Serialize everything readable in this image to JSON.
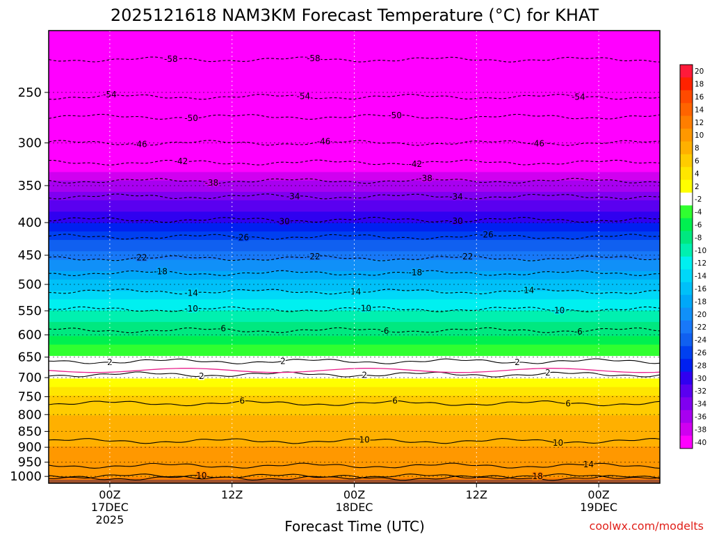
{
  "chart_data": {
    "type": "heatmap",
    "title": "2025121618 NAM3KM Forecast Temperature (°C) for KHAT",
    "xlabel": "Forecast Time (UTC)",
    "ylabel": "",
    "credit": "coolwx.com/modelts",
    "x_ticks": [
      {
        "hour": 6,
        "lines": [
          "00Z",
          "17DEC",
          "2025"
        ]
      },
      {
        "hour": 18,
        "lines": [
          "12Z"
        ]
      },
      {
        "hour": 30,
        "lines": [
          "00Z",
          "18DEC"
        ]
      },
      {
        "hour": 42,
        "lines": [
          "12Z"
        ]
      },
      {
        "hour": 54,
        "lines": [
          "00Z",
          "19DEC"
        ]
      }
    ],
    "xlim": [
      0,
      60
    ],
    "y_ticks": [
      1000,
      950,
      900,
      850,
      800,
      750,
      700,
      650,
      600,
      550,
      500,
      450,
      400,
      350,
      300,
      250
    ],
    "ylim": [
      1025,
      200
    ],
    "y_scale": "log-pressure",
    "colorbar": {
      "levels": [
        "20",
        "18",
        "16",
        "14",
        "12",
        "10",
        "8",
        "6",
        "4",
        "2",
        "-2",
        "-4",
        "-6",
        "-8",
        "-10",
        "-12",
        "-14",
        "-16",
        "-18",
        "-20",
        "-22",
        "-24",
        "-26",
        "-28",
        "-30",
        "-32",
        "-34",
        "-36",
        "-38",
        "-40"
      ],
      "colors": [
        "#ff1a3a",
        "#ff2200",
        "#ff4a00",
        "#ff6400",
        "#ff7e00",
        "#ff9800",
        "#ffb000",
        "#ffcc00",
        "#ffe600",
        "#ffff00",
        "#ffffff",
        "#30ff30",
        "#00f050",
        "#00e880",
        "#00f0b0",
        "#00f0f0",
        "#00d8f8",
        "#00c0f8",
        "#00a8f8",
        "#1090f8",
        "#1878f8",
        "#1060f0",
        "#0040f0",
        "#0020f0",
        "#3000f0",
        "#5a00f0",
        "#8000f0",
        "#a800f0",
        "#d000f0",
        "#ff00ff"
      ]
    },
    "temperature_profile": [
      {
        "pressure": 1000,
        "temp": 12
      },
      {
        "pressure": 950,
        "temp": 11
      },
      {
        "pressure": 900,
        "temp": 10
      },
      {
        "pressure": 850,
        "temp": 9
      },
      {
        "pressure": 800,
        "temp": 8
      },
      {
        "pressure": 750,
        "temp": 6
      },
      {
        "pressure": 700,
        "temp": 2
      },
      {
        "pressure": 650,
        "temp": -2
      },
      {
        "pressure": 600,
        "temp": -6
      },
      {
        "pressure": 550,
        "temp": -10
      },
      {
        "pressure": 500,
        "temp": -15
      },
      {
        "pressure": 450,
        "temp": -21
      },
      {
        "pressure": 400,
        "temp": -28
      },
      {
        "pressure": 350,
        "temp": -35
      },
      {
        "pressure": 300,
        "temp": -45
      },
      {
        "pressure": 250,
        "temp": -54
      },
      {
        "pressure": 200,
        "temp": -58
      }
    ],
    "contours": [
      {
        "label": "-58",
        "pressure": 222,
        "labels_at": [
          12,
          26
        ]
      },
      {
        "label": "-54",
        "pressure": 254,
        "labels_at": [
          6,
          25,
          52
        ]
      },
      {
        "label": "-50",
        "pressure": 273,
        "labels_at": [
          14,
          34
        ]
      },
      {
        "label": "-46",
        "pressure": 300,
        "labels_at": [
          9,
          27,
          48
        ]
      },
      {
        "label": "-42",
        "pressure": 322,
        "labels_at": [
          13,
          36
        ]
      },
      {
        "label": "-38",
        "pressure": 344,
        "labels_at": [
          16,
          37
        ]
      },
      {
        "label": "-34",
        "pressure": 364,
        "labels_at": [
          24,
          40
        ]
      },
      {
        "label": "-30",
        "pressure": 396,
        "labels_at": [
          23,
          40
        ]
      },
      {
        "label": "-26",
        "pressure": 421,
        "labels_at": [
          19,
          43
        ]
      },
      {
        "label": "-22",
        "pressure": 455,
        "labels_at": [
          9,
          26,
          41
        ]
      },
      {
        "label": "-18",
        "pressure": 480,
        "labels_at": [
          11,
          36
        ]
      },
      {
        "label": "-14",
        "pressure": 513,
        "labels_at": [
          14,
          30,
          47
        ]
      },
      {
        "label": "-10",
        "pressure": 547,
        "labels_at": [
          14,
          31,
          50
        ]
      },
      {
        "label": "-6",
        "pressure": 590,
        "labels_at": [
          17,
          33,
          52
        ]
      },
      {
        "label": "2",
        "pressure": 660,
        "labels_at": [
          6,
          23,
          46
        ]
      },
      {
        "label": "2",
        "pressure": 692,
        "labels_at": [
          15,
          31,
          49
        ]
      },
      {
        "label": "6",
        "pressure": 768,
        "labels_at": [
          19,
          34,
          51
        ]
      },
      {
        "label": "10",
        "pressure": 880,
        "labels_at": [
          31,
          50
        ]
      },
      {
        "label": "10",
        "pressure": 1005,
        "labels_at": [
          15
        ]
      },
      {
        "label": "14",
        "pressure": 962,
        "labels_at": [
          53
        ]
      },
      {
        "label": "18",
        "pressure": 1000,
        "labels_at": [
          48
        ]
      }
    ]
  }
}
